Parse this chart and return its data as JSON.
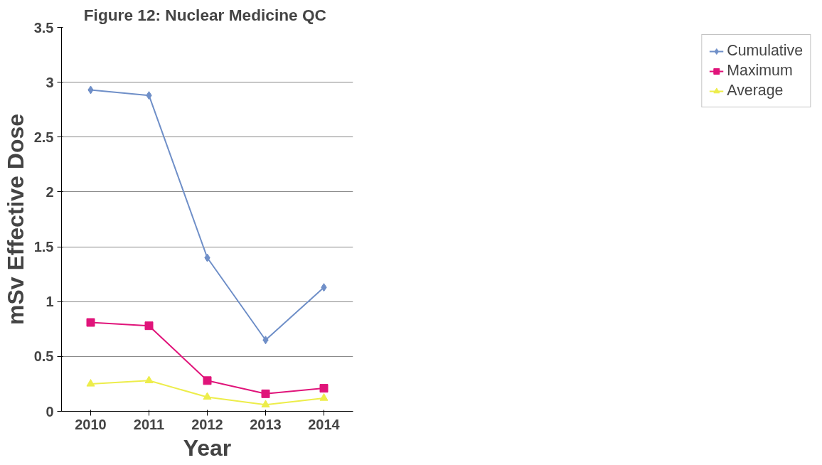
{
  "chart_data": {
    "type": "line",
    "title": "Figure 12:  Nuclear Medicine QC",
    "xlabel": "Year",
    "ylabel": "mSv Effective Dose",
    "categories": [
      "2010",
      "2011",
      "2012",
      "2013",
      "2014"
    ],
    "series": [
      {
        "name": "Cumulative",
        "color": "#6f8fc8",
        "marker": "diamond",
        "values": [
          2.93,
          2.88,
          1.4,
          0.65,
          1.13
        ]
      },
      {
        "name": "Maximum",
        "color": "#e0147a",
        "marker": "square",
        "values": [
          0.81,
          0.78,
          0.28,
          0.16,
          0.21
        ]
      },
      {
        "name": "Average",
        "color": "#eded4a",
        "marker": "triangle",
        "values": [
          0.25,
          0.28,
          0.13,
          0.06,
          0.12
        ]
      }
    ],
    "ylim": [
      0,
      3.5
    ],
    "yticks": [
      0,
      0.5,
      1,
      1.5,
      2,
      2.5,
      3,
      3.5
    ],
    "grid": "y",
    "legend": "right"
  }
}
